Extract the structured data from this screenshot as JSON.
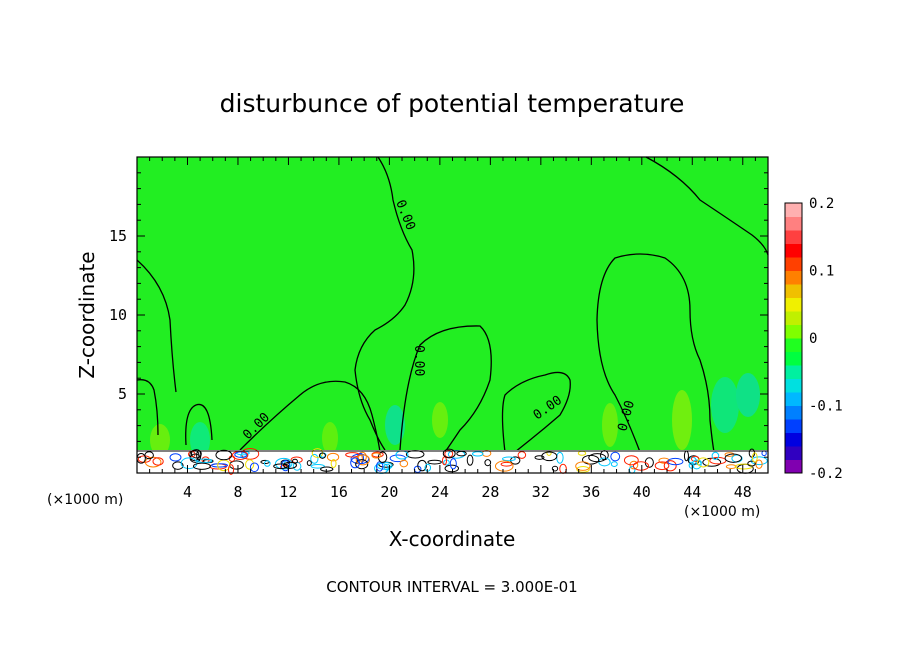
{
  "chart_data": {
    "type": "heatmap",
    "title": "disturbunce of potential temperature",
    "xlabel": "X-coordinate",
    "ylabel": "Z-coordinate",
    "x_unit": "(×1000 m)",
    "x_unit_right": "(×1000 m)",
    "xlim": [
      0,
      50
    ],
    "ylim": [
      0,
      20
    ],
    "x_ticks": [
      4,
      8,
      12,
      16,
      20,
      24,
      28,
      32,
      36,
      40,
      44,
      48
    ],
    "y_ticks": [
      5,
      10,
      15
    ],
    "contour_interval_text": "CONTOUR INTERVAL = 3.000E-01",
    "contour_labels": [
      "0.00",
      "0.00",
      "0.00",
      "0.00",
      "0.00"
    ],
    "colorbar": {
      "min": -0.2,
      "max": 0.2,
      "tick_labels": [
        "0.2",
        "0.1",
        "0",
        "-0.1",
        "-0.2"
      ],
      "tick_values": [
        0.2,
        0.1,
        0,
        -0.1,
        -0.2
      ],
      "colors": [
        "#8000b0",
        "#3000c0",
        "#0000e0",
        "#0040ff",
        "#0080ff",
        "#00b8ff",
        "#00e0e0",
        "#00f0a0",
        "#00ff40",
        "#20ff20",
        "#80ff00",
        "#c0f000",
        "#f0f000",
        "#f0c000",
        "#ff8000",
        "#ff4000",
        "#ff0000",
        "#ff4040",
        "#ff8080",
        "#ffb0b0"
      ]
    },
    "background_value": 0,
    "background_color": "#22ee22"
  }
}
